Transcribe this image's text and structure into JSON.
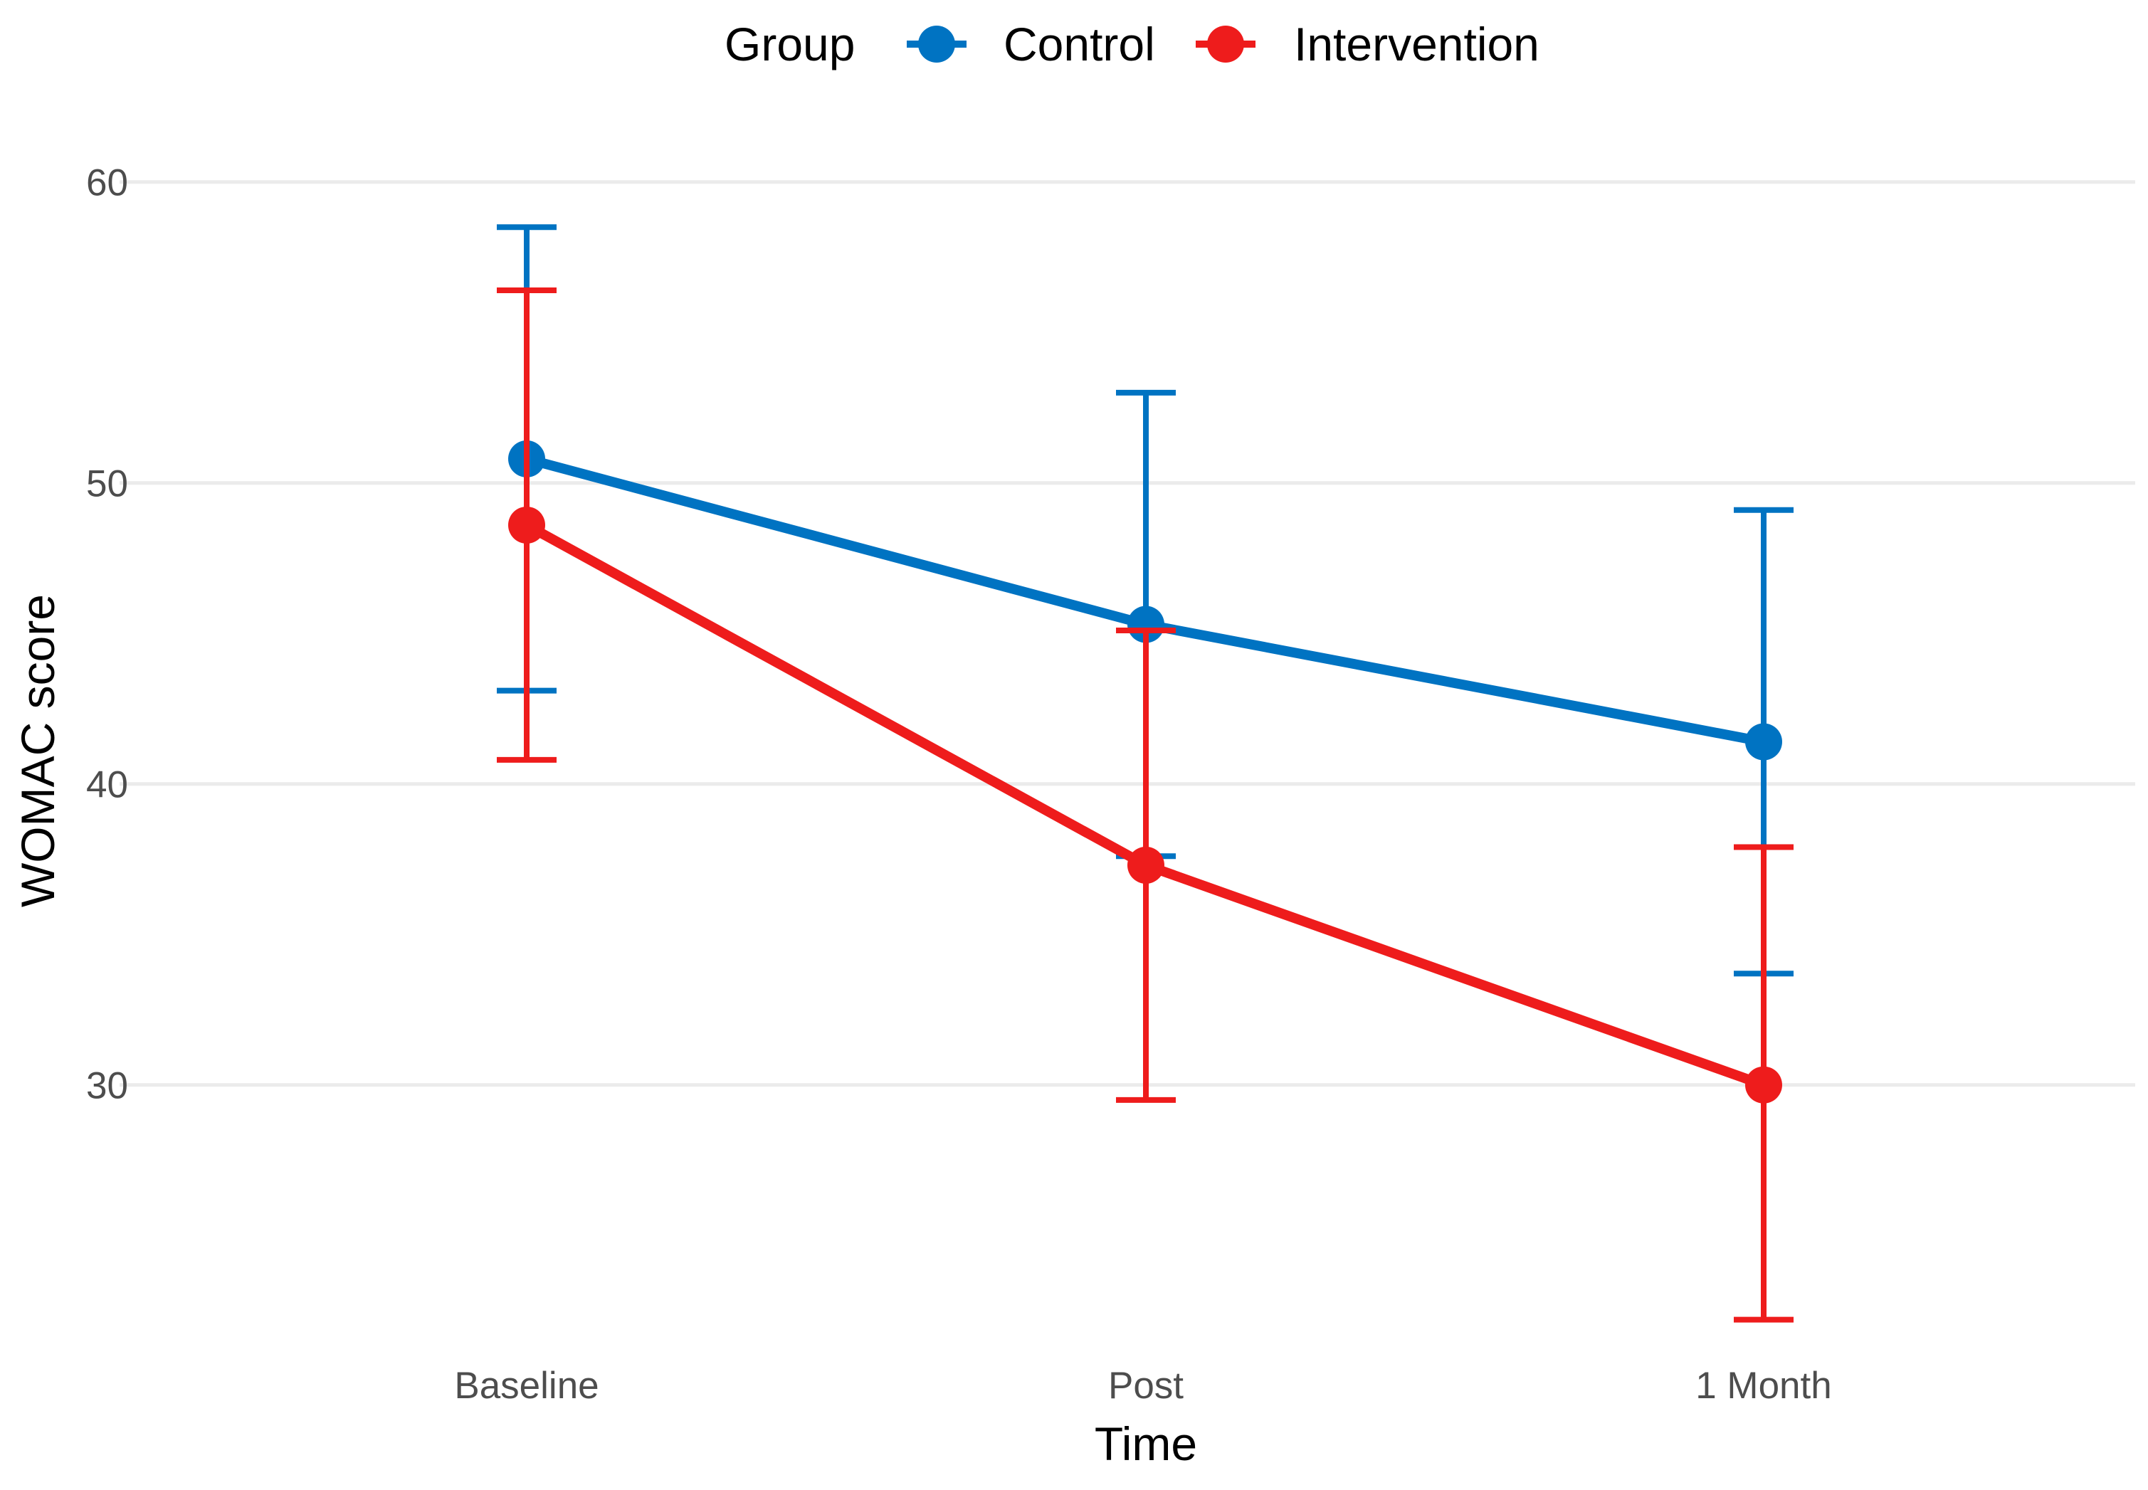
{
  "chart_data": {
    "type": "line",
    "xlabel": "Time",
    "ylabel": "WOMAC score",
    "categories": [
      "Baseline",
      "Post",
      "1 Month"
    ],
    "ylim": [
      21.6,
      62.5
    ],
    "yticks": [
      "30",
      "40",
      "50",
      "60"
    ],
    "grid": true,
    "legend": {
      "title": "Group",
      "placement": "top"
    },
    "series": [
      {
        "name": "Control",
        "color": "#0073c2",
        "values": [
          50.8,
          45.3,
          41.4
        ],
        "upper": [
          58.5,
          53.0,
          49.1
        ],
        "lower": [
          43.1,
          37.6,
          33.7
        ]
      },
      {
        "name": "Intervention",
        "color": "#ee1c1c",
        "values": [
          48.6,
          37.3,
          30.0
        ],
        "upper": [
          56.4,
          45.1,
          37.9
        ],
        "lower": [
          40.8,
          29.5,
          22.2
        ]
      }
    ]
  }
}
